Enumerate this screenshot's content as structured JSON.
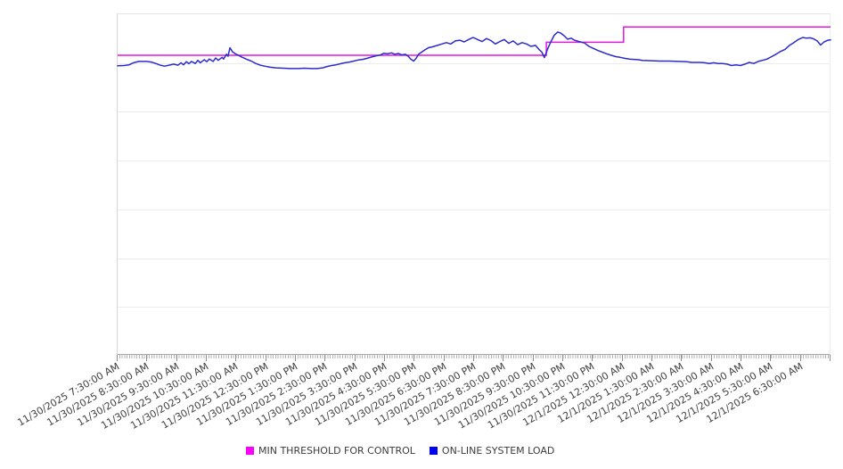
{
  "legend": {
    "items": [
      {
        "label": "MIN THRESHOLD FOR CONTROL",
        "color": "#fb00fb"
      },
      {
        "label": "ON-LINE SYSTEM LOAD",
        "color": "#0000f0"
      }
    ]
  },
  "chart_data": {
    "type": "line",
    "title": "",
    "xlabel": "",
    "ylabel": "",
    "grid": "horizontal, 7 bands, no y-axis tick labels visible",
    "legend_position": "bottom-center",
    "x_axis": {
      "kind": "time",
      "start": "11/30/2025 7:30:00 AM",
      "end": "12/1/2025 7:30:00 AM",
      "major_tick_interval_minutes": 60,
      "minor_tick_interval_minutes": 5,
      "tick_labels": [
        "11/30/2025 7:30:00 AM",
        "11/30/2025 8:30:00 AM",
        "11/30/2025 9:30:00 AM",
        "11/30/2025 10:30:00 AM",
        "11/30/2025 11:30:00 AM",
        "11/30/2025 12:30:00 PM",
        "11/30/2025 1:30:00 PM",
        "11/30/2025 2:30:00 PM",
        "11/30/2025 3:30:00 PM",
        "11/30/2025 4:30:00 PM",
        "11/30/2025 5:30:00 PM",
        "11/30/2025 6:30:00 PM",
        "11/30/2025 7:30:00 PM",
        "11/30/2025 8:30:00 PM",
        "11/30/2025 9:30:00 PM",
        "11/30/2025 10:30:00 PM",
        "11/30/2025 11:30:00 PM",
        "12/1/2025 12:30:00 AM",
        "12/1/2025 1:30:00 AM",
        "12/1/2025 2:30:00 AM",
        "12/1/2025 3:30:00 AM",
        "12/1/2025 4:30:00 AM",
        "12/1/2025 5:30:00 AM",
        "12/1/2025 6:30:00 AM"
      ]
    },
    "y_axis": {
      "labels_visible": false,
      "unit": "relative load (0-100 = bottom-to-top of plot, estimated; no numeric labels shown)",
      "range": [
        0,
        100
      ]
    },
    "series": [
      {
        "name": "MIN THRESHOLD FOR CONTROL",
        "type": "step",
        "color": "#e516df",
        "segments": [
          {
            "start_min": 0,
            "end_min": 866,
            "value": 88.0
          },
          {
            "start_min": 866,
            "end_min": 1022,
            "value": 91.8
          },
          {
            "start_min": 1022,
            "end_min": 1440,
            "value": 96.3
          }
        ]
      },
      {
        "name": "ON-LINE SYSTEM LOAD",
        "type": "line",
        "color": "#2b2bcd",
        "points": [
          [
            0,
            84.9
          ],
          [
            13,
            85.0
          ],
          [
            23,
            85.2
          ],
          [
            32,
            85.8
          ],
          [
            43,
            86.2
          ],
          [
            58,
            86.2
          ],
          [
            68,
            86.0
          ],
          [
            77,
            85.6
          ],
          [
            86,
            85.1
          ],
          [
            95,
            84.8
          ],
          [
            104,
            85.1
          ],
          [
            113,
            85.4
          ],
          [
            122,
            85.1
          ],
          [
            128,
            85.8
          ],
          [
            133,
            85.2
          ],
          [
            139,
            86.1
          ],
          [
            144,
            85.5
          ],
          [
            149,
            86.2
          ],
          [
            157,
            85.6
          ],
          [
            162,
            86.5
          ],
          [
            167,
            85.8
          ],
          [
            175,
            86.7
          ],
          [
            180,
            86.1
          ],
          [
            185,
            86.9
          ],
          [
            193,
            86.2
          ],
          [
            198,
            87.2
          ],
          [
            203,
            86.5
          ],
          [
            211,
            87.4
          ],
          [
            214,
            86.9
          ],
          [
            220,
            88.3
          ],
          [
            223,
            87.7
          ],
          [
            227,
            90.2
          ],
          [
            232,
            89.0
          ],
          [
            238,
            88.4
          ],
          [
            245,
            87.9
          ],
          [
            252,
            87.4
          ],
          [
            261,
            86.8
          ],
          [
            270,
            86.3
          ],
          [
            279,
            85.6
          ],
          [
            288,
            85.1
          ],
          [
            297,
            84.8
          ],
          [
            308,
            84.5
          ],
          [
            320,
            84.3
          ],
          [
            335,
            84.2
          ],
          [
            349,
            84.1
          ],
          [
            364,
            84.1
          ],
          [
            378,
            84.2
          ],
          [
            391,
            84.1
          ],
          [
            403,
            84.1
          ],
          [
            414,
            84.3
          ],
          [
            423,
            84.7
          ],
          [
            432,
            85.0
          ],
          [
            441,
            85.2
          ],
          [
            450,
            85.5
          ],
          [
            459,
            85.8
          ],
          [
            468,
            86.0
          ],
          [
            477,
            86.3
          ],
          [
            486,
            86.6
          ],
          [
            495,
            86.8
          ],
          [
            504,
            87.1
          ],
          [
            513,
            87.5
          ],
          [
            522,
            87.8
          ],
          [
            531,
            88.1
          ],
          [
            538,
            88.6
          ],
          [
            545,
            88.4
          ],
          [
            553,
            88.7
          ],
          [
            560,
            88.3
          ],
          [
            567,
            88.5
          ],
          [
            574,
            88.1
          ],
          [
            581,
            88.3
          ],
          [
            587,
            87.7
          ],
          [
            592,
            86.9
          ],
          [
            598,
            86.3
          ],
          [
            603,
            87.1
          ],
          [
            608,
            88.3
          ],
          [
            614,
            88.9
          ],
          [
            621,
            89.6
          ],
          [
            628,
            90.2
          ],
          [
            637,
            90.5
          ],
          [
            646,
            90.9
          ],
          [
            655,
            91.3
          ],
          [
            664,
            91.7
          ],
          [
            673,
            91.3
          ],
          [
            682,
            92.2
          ],
          [
            691,
            92.4
          ],
          [
            700,
            91.9
          ],
          [
            709,
            92.6
          ],
          [
            718,
            93.2
          ],
          [
            727,
            92.6
          ],
          [
            736,
            92.0
          ],
          [
            745,
            92.9
          ],
          [
            754,
            92.3
          ],
          [
            763,
            91.3
          ],
          [
            772,
            92.0
          ],
          [
            781,
            92.6
          ],
          [
            790,
            91.5
          ],
          [
            799,
            92.2
          ],
          [
            808,
            91.1
          ],
          [
            817,
            91.7
          ],
          [
            826,
            91.3
          ],
          [
            835,
            90.6
          ],
          [
            844,
            90.9
          ],
          [
            851,
            89.7
          ],
          [
            857,
            88.9
          ],
          [
            862,
            87.3
          ],
          [
            869,
            90.0
          ],
          [
            875,
            91.9
          ],
          [
            882,
            93.9
          ],
          [
            889,
            94.8
          ],
          [
            895,
            94.5
          ],
          [
            902,
            93.7
          ],
          [
            909,
            92.7
          ],
          [
            916,
            93.0
          ],
          [
            923,
            92.4
          ],
          [
            932,
            92.0
          ],
          [
            943,
            91.6
          ],
          [
            952,
            90.6
          ],
          [
            961,
            90.0
          ],
          [
            970,
            89.4
          ],
          [
            979,
            88.9
          ],
          [
            988,
            88.4
          ],
          [
            997,
            88.0
          ],
          [
            1006,
            87.6
          ],
          [
            1015,
            87.4
          ],
          [
            1024,
            87.1
          ],
          [
            1033,
            86.9
          ],
          [
            1042,
            86.8
          ],
          [
            1051,
            86.7
          ],
          [
            1060,
            86.5
          ],
          [
            1078,
            86.4
          ],
          [
            1096,
            86.3
          ],
          [
            1114,
            86.3
          ],
          [
            1132,
            86.2
          ],
          [
            1150,
            86.1
          ],
          [
            1159,
            85.9
          ],
          [
            1177,
            85.9
          ],
          [
            1186,
            85.8
          ],
          [
            1195,
            85.6
          ],
          [
            1204,
            85.8
          ],
          [
            1213,
            85.6
          ],
          [
            1222,
            85.6
          ],
          [
            1231,
            85.4
          ],
          [
            1240,
            85.0
          ],
          [
            1249,
            85.2
          ],
          [
            1258,
            85.0
          ],
          [
            1267,
            85.4
          ],
          [
            1276,
            85.9
          ],
          [
            1285,
            85.6
          ],
          [
            1294,
            86.2
          ],
          [
            1305,
            86.6
          ],
          [
            1312,
            86.9
          ],
          [
            1321,
            87.6
          ],
          [
            1330,
            88.3
          ],
          [
            1339,
            89.1
          ],
          [
            1348,
            89.7
          ],
          [
            1357,
            90.9
          ],
          [
            1366,
            91.7
          ],
          [
            1375,
            92.6
          ],
          [
            1384,
            93.2
          ],
          [
            1391,
            93.0
          ],
          [
            1399,
            93.1
          ],
          [
            1406,
            92.8
          ],
          [
            1413,
            92.2
          ],
          [
            1420,
            91.0
          ],
          [
            1427,
            91.9
          ],
          [
            1435,
            92.4
          ],
          [
            1440,
            92.5
          ]
        ]
      }
    ]
  }
}
